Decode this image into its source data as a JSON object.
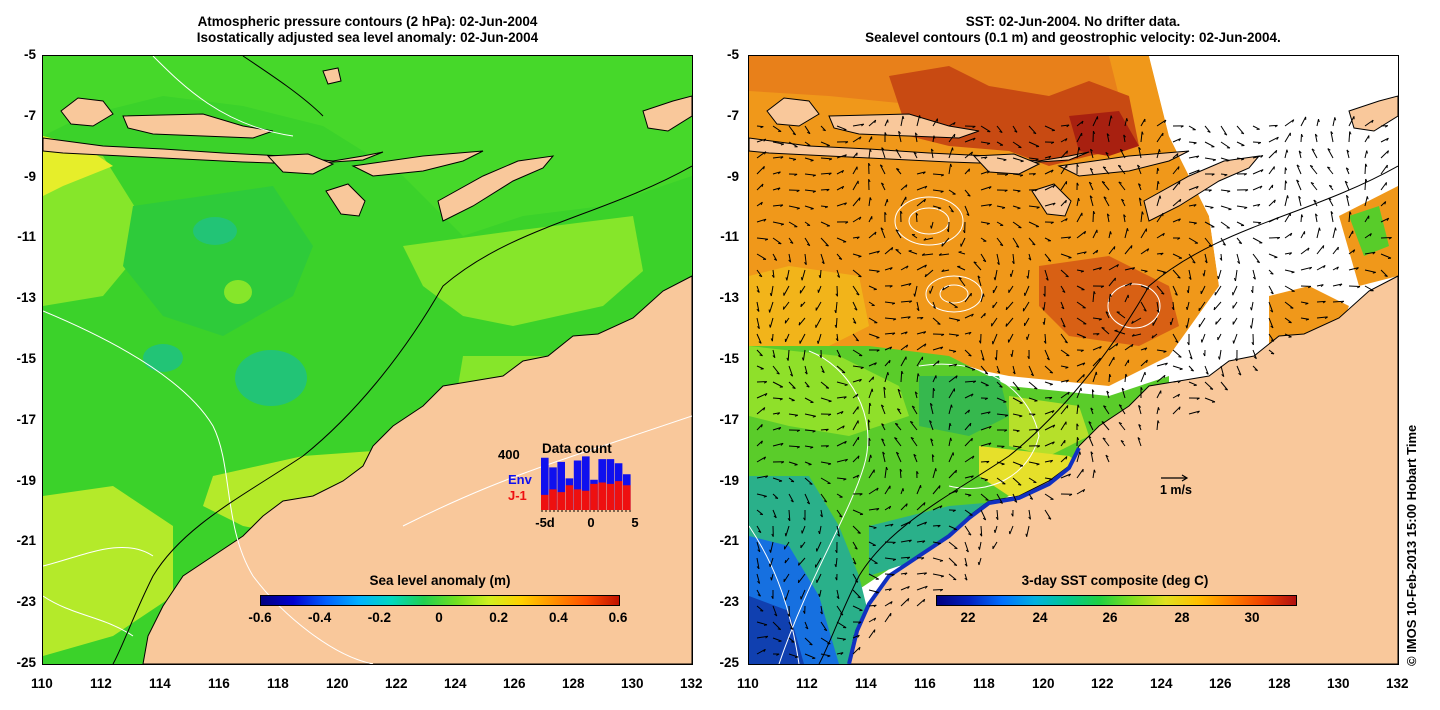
{
  "left_panel": {
    "title_line1": "Atmospheric pressure contours (2 hPa): 02-Jun-2004",
    "title_line2": "Isostatically adjusted sea level anomaly: 02-Jun-2004",
    "colorbar": {
      "title": "Sea level anomaly (m)",
      "labels": [
        "-0.6",
        "-0.4",
        "-0.2",
        "0",
        "0.2",
        "0.4",
        "0.6"
      ]
    },
    "data_count": {
      "title": "Data count",
      "max_label": "400",
      "env_label": "Env",
      "j1_label": "J-1",
      "x_labels": [
        "-5d",
        "0",
        "5"
      ],
      "env_colour": "#1010ee",
      "j1_colour": "#ee1010",
      "env_values": [
        380,
        310,
        350,
        230,
        360,
        390,
        220,
        370,
        370,
        340,
        260
      ],
      "j1_values": [
        110,
        150,
        130,
        180,
        150,
        140,
        190,
        200,
        190,
        210,
        180
      ]
    }
  },
  "right_panel": {
    "title_line1": "SST: 02-Jun-2004. No drifter data.",
    "title_line2": "Sealevel contours (0.1 m) and geostrophic velocity: 02-Jun-2004.",
    "colorbar": {
      "title": "3-day SST composite (deg C)",
      "labels": [
        "22",
        "24",
        "26",
        "28",
        "30"
      ]
    },
    "velocity_scale_label": "1 m/s"
  },
  "axes": {
    "lon_labels": [
      "110",
      "112",
      "114",
      "116",
      "118",
      "120",
      "122",
      "124",
      "126",
      "128",
      "130",
      "132"
    ],
    "lat_labels": [
      "-5",
      "-7",
      "-9",
      "-11",
      "-13",
      "-15",
      "-17",
      "-19",
      "-21",
      "-23",
      "-25"
    ]
  },
  "colors": {
    "land": "#f9c89b",
    "ocean_green": "#3bd22a",
    "ocean_light": "#86e62a",
    "ocean_yellowgreen": "#b4ea2a",
    "sst_orange": "#f0981a",
    "sst_darkred": "#b83010",
    "sst_blue": "#1670e0"
  },
  "credit": "© IMOS 10-Feb-2013 15:00 Hobart Time"
}
